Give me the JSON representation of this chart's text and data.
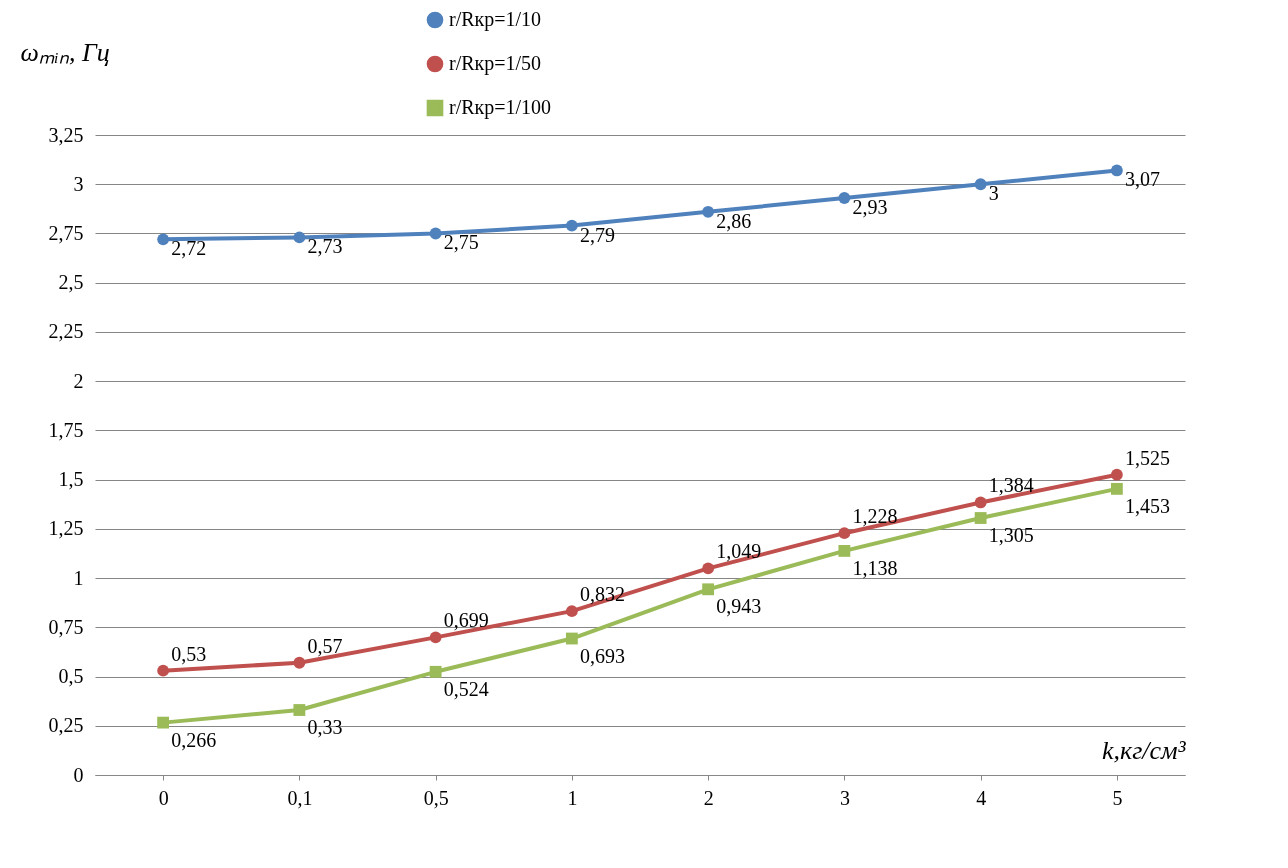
{
  "chart_data": {
    "type": "line",
    "ylabel": "ωₘᵢₙ, Гц",
    "xlabel": "k,кг/см³",
    "categories": [
      "0",
      "0,1",
      "0,5",
      "1",
      "2",
      "3",
      "4",
      "5"
    ],
    "series": [
      {
        "name": "r/Rкр=1/10",
        "color": "#4f81bd",
        "marker": "circle",
        "values": [
          2.72,
          2.73,
          2.75,
          2.79,
          2.86,
          2.93,
          3,
          3.07
        ],
        "value_labels": [
          "2,72",
          "2,73",
          "2,75",
          "2,79",
          "2,86",
          "2,93",
          "3",
          "3,07"
        ]
      },
      {
        "name": "r/Rкр=1/50",
        "color": "#c0504d",
        "marker": "circle",
        "values": [
          0.53,
          0.57,
          0.699,
          0.832,
          1.049,
          1.228,
          1.384,
          1.525
        ],
        "value_labels": [
          "0,53",
          "0,57",
          "0,699",
          "0,832",
          "1,049",
          "1,228",
          "1,384",
          "1,525"
        ]
      },
      {
        "name": "r/Rкр=1/100",
        "color": "#9bbb59",
        "marker": "square",
        "values": [
          0.266,
          0.33,
          0.524,
          0.693,
          0.943,
          1.138,
          1.305,
          1.453
        ],
        "value_labels": [
          "0,266",
          "0,33",
          "0,524",
          "0,693",
          "0,943",
          "1,138",
          "1,305",
          "1,453"
        ]
      }
    ],
    "ylim": [
      0,
      3.25
    ],
    "yticks": [
      0,
      {
        "value": 0.25,
        "label": "0,25"
      },
      {
        "value": 0.5,
        "label": "0,5"
      },
      {
        "value": 0.75,
        "label": "0,75"
      },
      1,
      {
        "value": 1.25,
        "label": "1,25"
      },
      {
        "value": 1.5,
        "label": "1,5"
      },
      {
        "value": 1.75,
        "label": "1,75"
      },
      2,
      {
        "value": 2.25,
        "label": "2,25"
      },
      {
        "value": 2.5,
        "label": "2,5"
      },
      {
        "value": 2.75,
        "label": "2,75"
      },
      3,
      {
        "value": 3.25,
        "label": "3,25"
      }
    ],
    "grid": "y",
    "legend": "top",
    "line_style": "solid"
  }
}
